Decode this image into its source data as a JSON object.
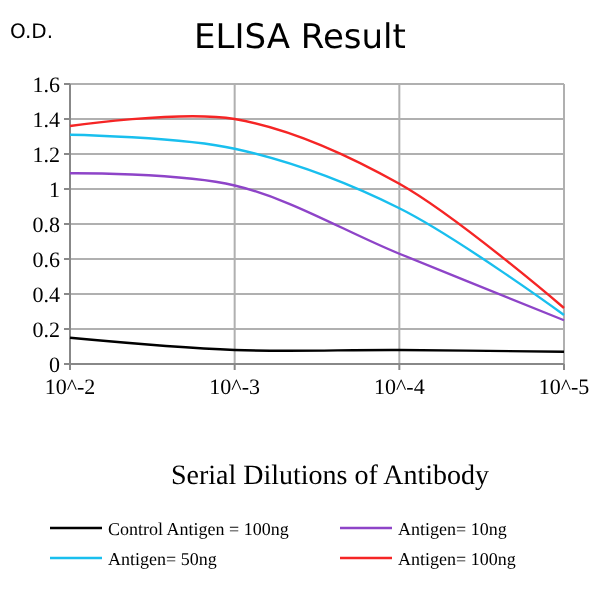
{
  "chart_data": {
    "type": "line",
    "title": "ELISA Result",
    "ylabel": "O.D.",
    "xlabel": "Serial Dilutions of Antibody",
    "x": [
      0.01,
      0.001,
      0.0001,
      1e-05
    ],
    "log": "x",
    "xlim": [
      0.01,
      1e-05
    ],
    "xticks": [
      {
        "value": 0.01,
        "label": "10^-2"
      },
      {
        "value": 0.001,
        "label": "10^-3"
      },
      {
        "value": 0.0001,
        "label": "10^-4"
      },
      {
        "value": 1e-05,
        "label": "10^-5"
      }
    ],
    "ylim": [
      0,
      1.6
    ],
    "yticks": [
      0,
      0.2,
      0.4,
      0.6,
      0.8,
      1,
      1.2,
      1.4,
      1.6
    ],
    "grid": true,
    "legend": "bottom",
    "marker": "none",
    "line_style": "solid",
    "series": [
      {
        "name": "Control Antigen = 100ng",
        "color": "#000000",
        "values": [
          0.15,
          0.08,
          0.08,
          0.07
        ]
      },
      {
        "name": "Antigen= 10ng",
        "color": "#8e44c8",
        "values": [
          1.09,
          1.02,
          0.63,
          0.25
        ]
      },
      {
        "name": "Antigen= 50ng",
        "color": "#19bfee",
        "values": [
          1.31,
          1.23,
          0.89,
          0.28
        ]
      },
      {
        "name": "Antigen= 100ng",
        "color": "#f52525",
        "values": [
          1.36,
          1.4,
          1.03,
          0.32
        ]
      }
    ]
  }
}
